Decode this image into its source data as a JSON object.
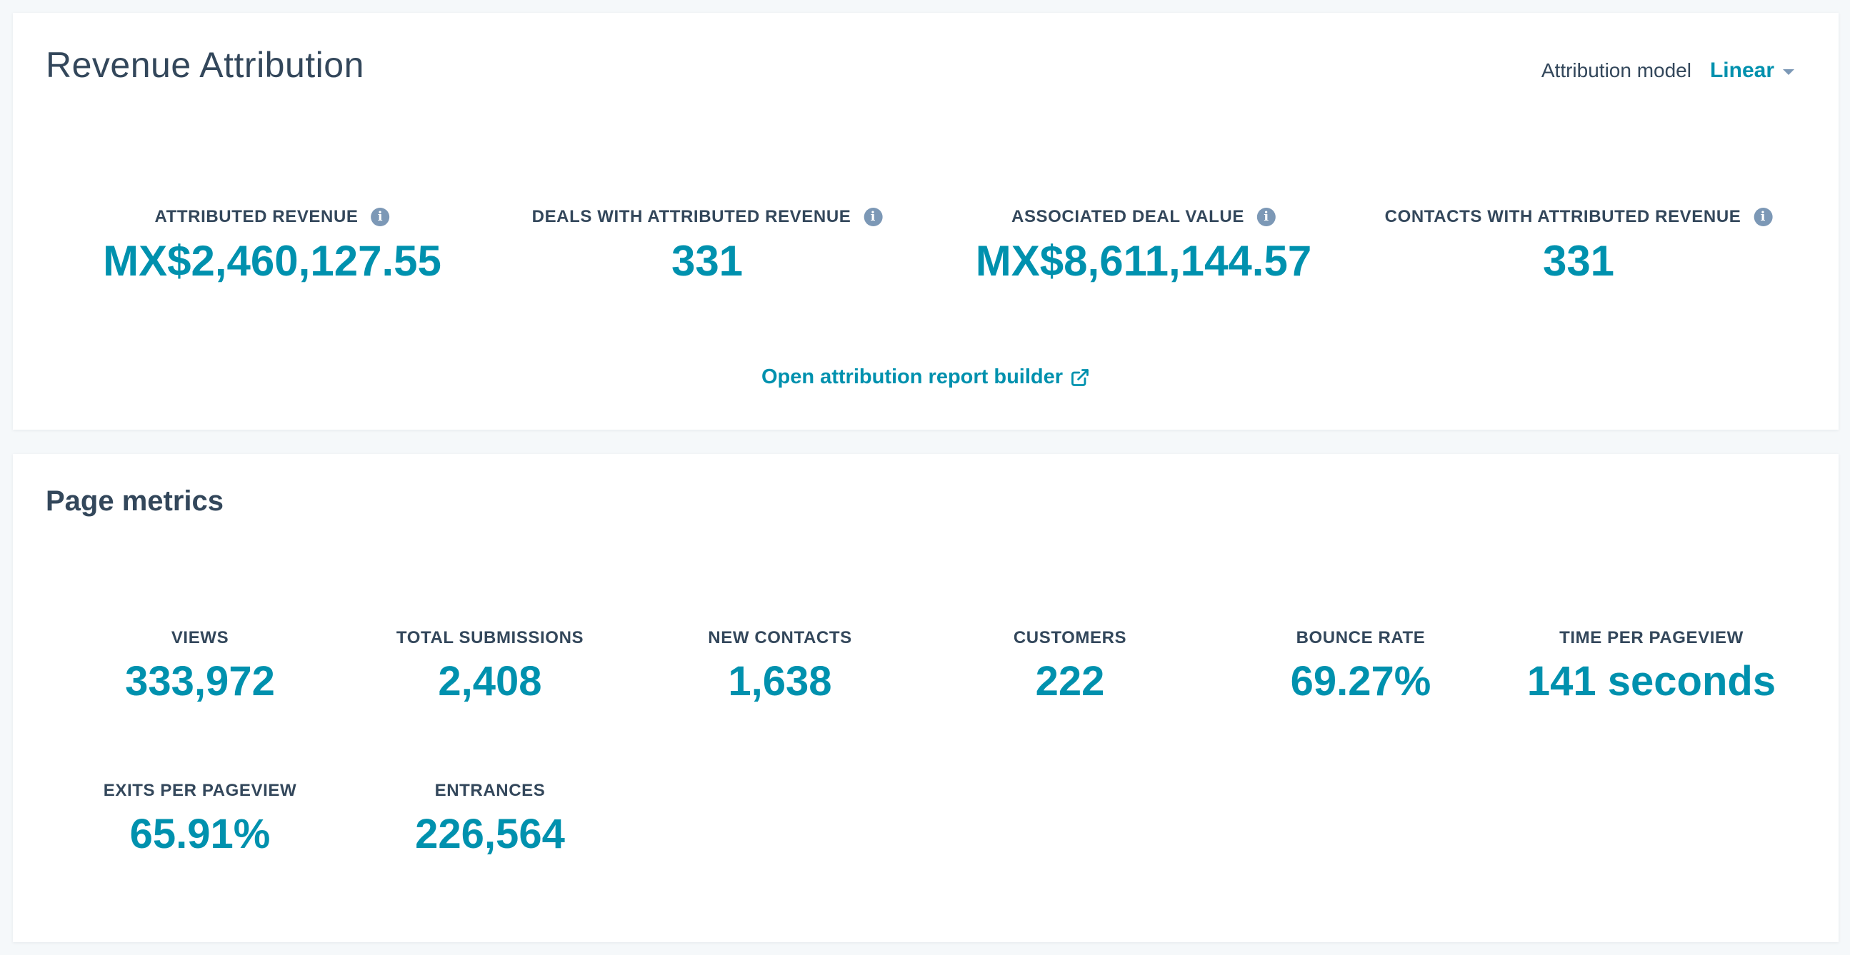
{
  "revenue_attribution": {
    "title": "Revenue Attribution",
    "attribution_model": {
      "label": "Attribution model",
      "selected": "Linear"
    },
    "kpis": [
      {
        "label": "ATTRIBUTED REVENUE",
        "value": "MX$2,460,127.55",
        "info_icon": "info-icon"
      },
      {
        "label": "DEALS WITH ATTRIBUTED REVENUE",
        "value": "331",
        "info_icon": "info-icon"
      },
      {
        "label": "ASSOCIATED DEAL VALUE",
        "value": "MX$8,611,144.57",
        "info_icon": "info-icon"
      },
      {
        "label": "CONTACTS WITH ATTRIBUTED REVENUE",
        "value": "331",
        "info_icon": "info-icon"
      }
    ],
    "report_link": {
      "text": "Open attribution report builder",
      "icon": "external-link-icon"
    }
  },
  "page_metrics": {
    "title": "Page metrics",
    "metrics": [
      {
        "label": "VIEWS",
        "value": "333,972"
      },
      {
        "label": "TOTAL SUBMISSIONS",
        "value": "2,408"
      },
      {
        "label": "NEW CONTACTS",
        "value": "1,638"
      },
      {
        "label": "CUSTOMERS",
        "value": "222"
      },
      {
        "label": "BOUNCE RATE",
        "value": "69.27%"
      },
      {
        "label": "TIME PER PAGEVIEW",
        "value": "141 seconds"
      },
      {
        "label": "EXITS PER PAGEVIEW",
        "value": "65.91%"
      },
      {
        "label": "ENTRANCES",
        "value": "226,564"
      }
    ]
  },
  "colors": {
    "accent": "#0091ae",
    "text": "#33475b",
    "icon": "#7c98b6",
    "background": "#f5f8fa",
    "card": "#ffffff"
  }
}
